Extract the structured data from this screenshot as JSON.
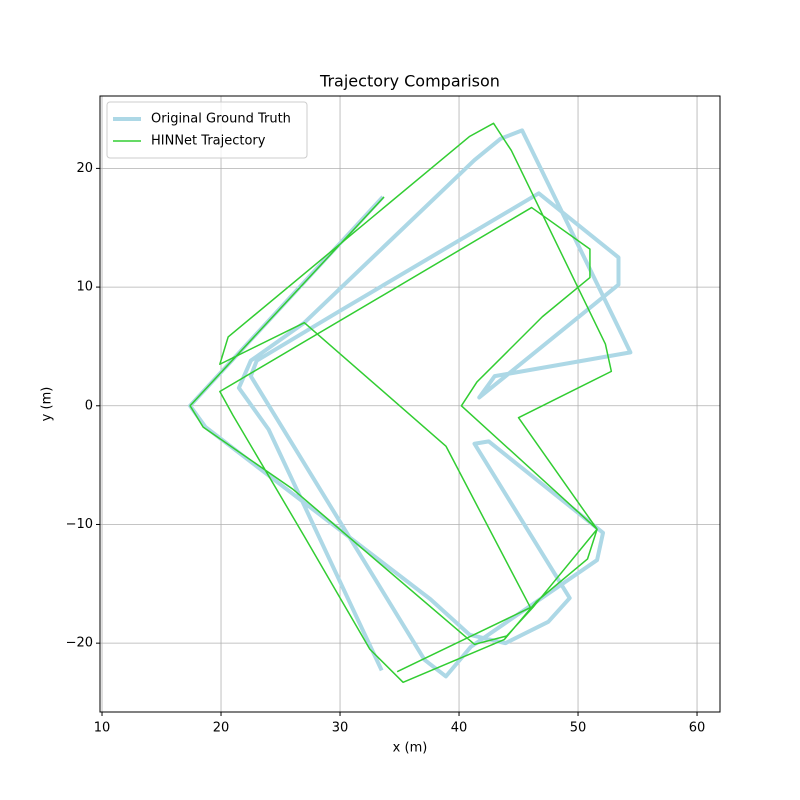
{
  "chart_data": {
    "type": "line",
    "title": "Trajectory Comparison",
    "x_label": "x (m)",
    "y_label": "y (m)",
    "xlim": [
      9.83,
      61.93
    ],
    "ylim": [
      -25.8,
      26.1
    ],
    "xticks": [
      10,
      20,
      30,
      40,
      50,
      60
    ],
    "yticks": [
      {
        "value": -20,
        "label": "−20"
      },
      {
        "value": -10,
        "label": "−10"
      },
      0,
      10,
      20
    ],
    "grid": true,
    "legend": "upper left",
    "series": [
      {
        "name": "Original Ground Truth",
        "color": "#add8e6",
        "linewidth": 4,
        "x": [
          33.6,
          17.4,
          18.7,
          37.6,
          40.9,
          43.9,
          47.5,
          49.3,
          41.3,
          42.5,
          52.1,
          51.6,
          41,
          38.9,
          37.1,
          22.5,
          23,
          30,
          46.7,
          53.4,
          53.4,
          41.7,
          43,
          54.4,
          53.2,
          45.3,
          43.5,
          41.3,
          27,
          22.5,
          21.5,
          24,
          33.5
        ],
        "values": [
          17.6,
          0,
          -1.8,
          -16.3,
          -19.3,
          -20,
          -18.2,
          -16.2,
          -3.2,
          -3,
          -10.7,
          -13,
          -20.3,
          -22.8,
          -21.4,
          2.5,
          3.8,
          8,
          17.9,
          12.5,
          10.2,
          0.7,
          2.5,
          4.5,
          7,
          23.2,
          22.5,
          20.7,
          7,
          3.8,
          1.5,
          -2,
          -22.3
        ]
      },
      {
        "name": "HINNet Trajectory",
        "color": "#32cd32",
        "linewidth": 1.5,
        "x": [
          33.7,
          17.4,
          18.5,
          26,
          41.3,
          44,
          46.2,
          51.6,
          40.2,
          41.5,
          47,
          51,
          51,
          46.1,
          19.9,
          21,
          27,
          32.5,
          35.3,
          43.8,
          46.5,
          50.8,
          51.6,
          45,
          52.8,
          52.3,
          44.4,
          42.9,
          40.9,
          20.6,
          19.9,
          27,
          38.9,
          46,
          34.8
        ],
        "values": [
          17.6,
          0,
          -1.8,
          -7,
          -20.1,
          -19.4,
          -17,
          -10.4,
          0,
          2,
          7.5,
          10.8,
          13.2,
          16.7,
          1.2,
          -0.8,
          -11,
          -20.5,
          -23.3,
          -19.7,
          -16.5,
          -12.9,
          -10.4,
          -1,
          2.9,
          5.2,
          21.5,
          23.8,
          22.7,
          5.8,
          3.5,
          7,
          -3.4,
          -17,
          -22.4
        ]
      }
    ]
  }
}
